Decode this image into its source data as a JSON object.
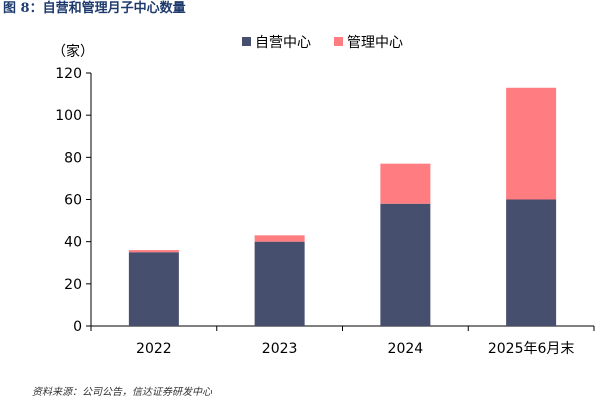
{
  "figure": {
    "title": "图 8：自营和管理月子中心数量",
    "source": "资料来源：公司公告，信达证券研发中心"
  },
  "chart_data": {
    "type": "bar",
    "stacked": true,
    "categories": [
      "2022",
      "2023",
      "2024",
      "2025年6月末"
    ],
    "series": [
      {
        "name": "自营中心",
        "values": [
          35,
          40,
          58,
          60
        ],
        "color": "#474f6f"
      },
      {
        "name": "管理中心",
        "values": [
          1,
          3,
          19,
          53
        ],
        "color": "#ff7c80"
      }
    ],
    "ylabel": "（家）",
    "ylim": [
      0,
      120
    ],
    "yticks": [
      0,
      20,
      40,
      60,
      80,
      100,
      120
    ],
    "grid": false,
    "legend": "top-right"
  }
}
